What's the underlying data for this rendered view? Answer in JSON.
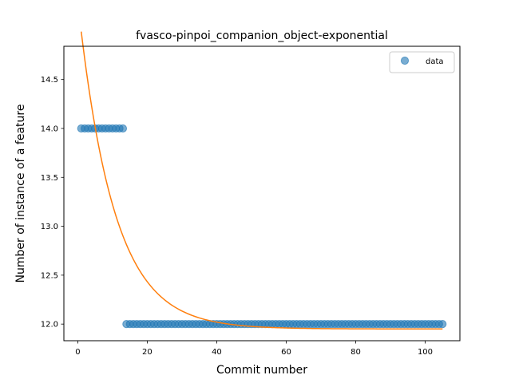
{
  "chart_data": {
    "type": "scatter",
    "title": "fvasco-pinpoi_companion_object-exponential",
    "xlabel": "Commit number",
    "ylabel": "Number of instance of a feature",
    "xlim": [
      -4,
      110
    ],
    "ylim": [
      11.83,
      14.84
    ],
    "xticks": [
      0,
      20,
      40,
      60,
      80,
      100
    ],
    "yticks": [
      12.0,
      12.5,
      13.0,
      13.5,
      14.0,
      14.5
    ],
    "xtick_labels": [
      "0",
      "20",
      "40",
      "60",
      "80",
      "100"
    ],
    "ytick_labels": [
      "12.0",
      "12.5",
      "13.0",
      "13.5",
      "14.0",
      "14.5"
    ],
    "legend": {
      "position": "top-right",
      "entries": [
        "data"
      ]
    },
    "grid": false,
    "series": [
      {
        "name": "data",
        "kind": "scatter",
        "color": "#1f77b4",
        "segments": [
          {
            "x_start": 1,
            "x_end": 13,
            "y": 14.0
          },
          {
            "x_start": 14,
            "x_end": 105,
            "y": 12.0
          }
        ]
      },
      {
        "kind": "line",
        "color": "#ff7f0e",
        "model": "exponential",
        "a": 3.04,
        "b": 0.0968,
        "c": 11.95,
        "x_start": 1,
        "x_end": 105
      }
    ]
  }
}
